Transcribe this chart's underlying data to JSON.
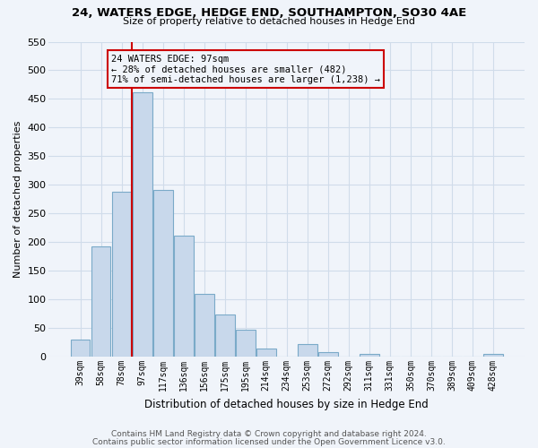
{
  "title1": "24, WATERS EDGE, HEDGE END, SOUTHAMPTON, SO30 4AE",
  "title2": "Size of property relative to detached houses in Hedge End",
  "xlabel": "Distribution of detached houses by size in Hedge End",
  "ylabel": "Number of detached properties",
  "bar_labels": [
    "39sqm",
    "58sqm",
    "78sqm",
    "97sqm",
    "117sqm",
    "136sqm",
    "156sqm",
    "175sqm",
    "195sqm",
    "214sqm",
    "234sqm",
    "253sqm",
    "272sqm",
    "292sqm",
    "311sqm",
    "331sqm",
    "350sqm",
    "370sqm",
    "389sqm",
    "409sqm",
    "428sqm"
  ],
  "bar_values": [
    30,
    192,
    288,
    461,
    291,
    212,
    110,
    74,
    47,
    14,
    0,
    22,
    8,
    0,
    5,
    0,
    0,
    0,
    0,
    0,
    5
  ],
  "bar_color": "#c8d8eb",
  "bar_edge_color": "#7aaac8",
  "vline_index": 3,
  "vline_color": "#cc0000",
  "annotation_text": "24 WATERS EDGE: 97sqm\n← 28% of detached houses are smaller (482)\n71% of semi-detached houses are larger (1,238) →",
  "annotation_box_color": "#cc0000",
  "ylim": [
    0,
    550
  ],
  "yticks": [
    0,
    50,
    100,
    150,
    200,
    250,
    300,
    350,
    400,
    450,
    500,
    550
  ],
  "grid_color": "#d0dcea",
  "footer1": "Contains HM Land Registry data © Crown copyright and database right 2024.",
  "footer2": "Contains public sector information licensed under the Open Government Licence v3.0.",
  "bg_color": "#f0f4fa"
}
